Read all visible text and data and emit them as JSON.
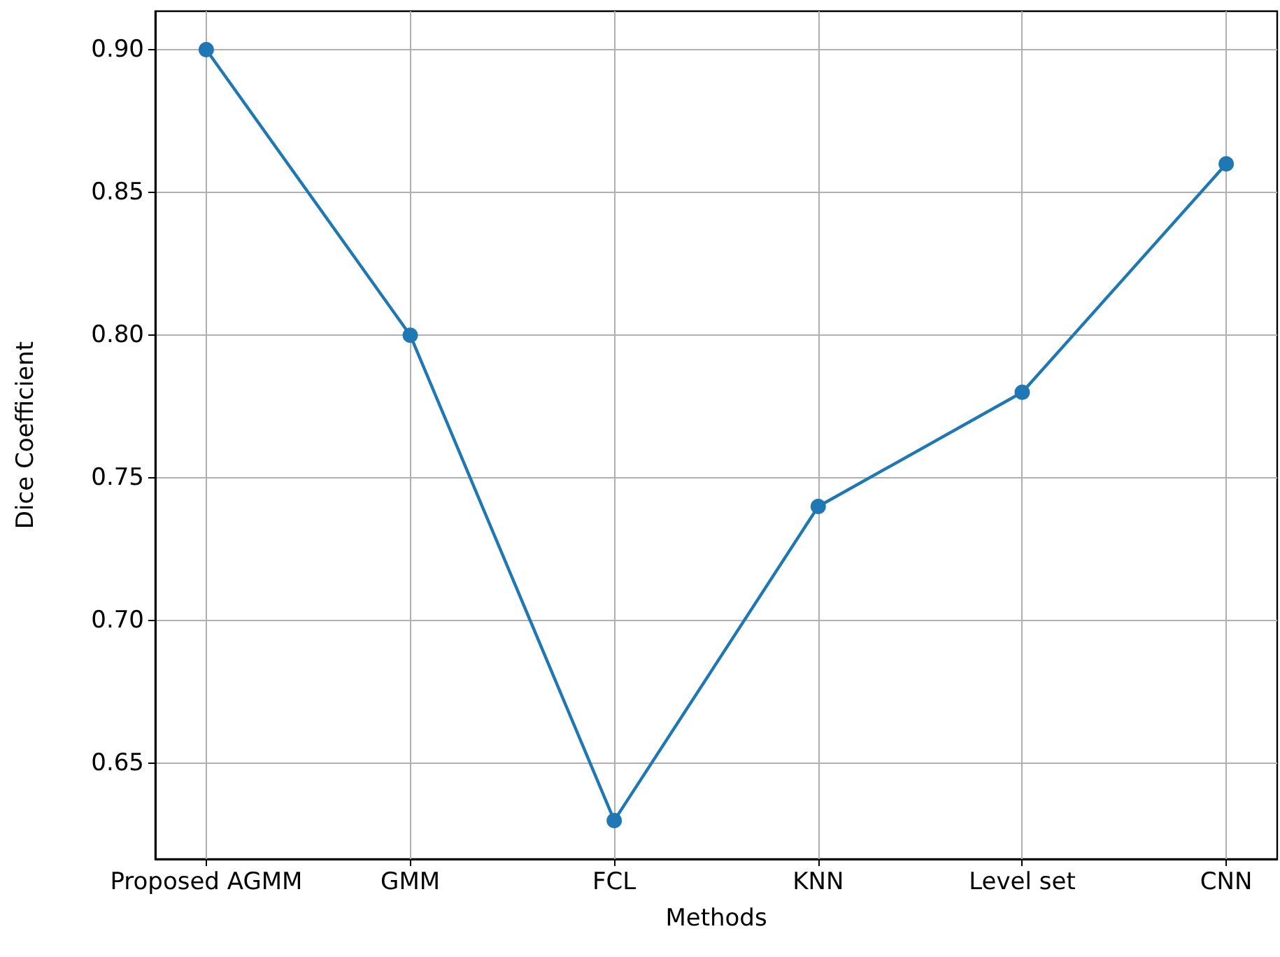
{
  "chart_data": {
    "type": "line",
    "xlabel": "Methods",
    "ylabel": "Dice Coefficient",
    "categories": [
      "Proposed AGMM",
      "GMM",
      "FCL",
      "KNN",
      "Level set",
      "CNN"
    ],
    "series": [
      {
        "color": "#1f77b4",
        "values": [
          0.9,
          0.8,
          0.63,
          0.74,
          0.78,
          0.86
        ]
      }
    ],
    "ylim": [
      0.6165,
      0.9135
    ],
    "yticks": [
      0.65,
      {
        "value": 0.7,
        "label": "0.70"
      },
      0.75,
      {
        "value": 0.8,
        "label": "0.80"
      },
      0.85,
      {
        "value": 0.9,
        "label": "0.90"
      }
    ],
    "grid": true,
    "marker": "circle",
    "line_style": "solid"
  }
}
